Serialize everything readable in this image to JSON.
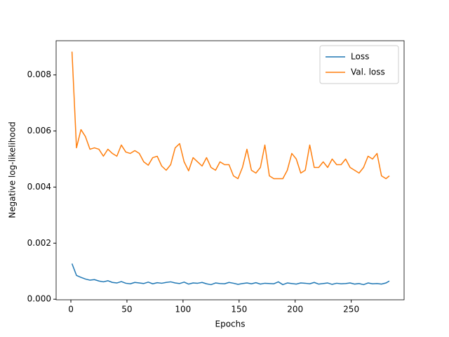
{
  "chart_data": {
    "type": "line",
    "xlabel": "Epochs",
    "ylabel": "Negative log-likelihood",
    "x": [
      1,
      5,
      9,
      13,
      17,
      21,
      25,
      29,
      33,
      37,
      41,
      45,
      49,
      53,
      57,
      61,
      65,
      69,
      73,
      77,
      81,
      85,
      89,
      93,
      97,
      101,
      105,
      109,
      113,
      117,
      121,
      125,
      129,
      133,
      137,
      141,
      145,
      149,
      153,
      157,
      161,
      165,
      169,
      173,
      177,
      181,
      185,
      189,
      193,
      197,
      201,
      205,
      209,
      213,
      217,
      221,
      225,
      229,
      233,
      237,
      241,
      245,
      249,
      253,
      257,
      261,
      265,
      269,
      273,
      277,
      281,
      284
    ],
    "series": [
      {
        "name": "Loss",
        "color": "#1f77b4",
        "values": [
          0.00127,
          0.00085,
          0.00078,
          0.00072,
          0.00068,
          0.0007,
          0.00065,
          0.00062,
          0.00066,
          0.0006,
          0.00058,
          0.00063,
          0.00057,
          0.00055,
          0.0006,
          0.00058,
          0.00056,
          0.00061,
          0.00055,
          0.00059,
          0.00057,
          0.0006,
          0.00062,
          0.00058,
          0.00056,
          0.00061,
          0.00054,
          0.00058,
          0.00057,
          0.0006,
          0.00055,
          0.00052,
          0.00058,
          0.00056,
          0.00055,
          0.0006,
          0.00057,
          0.00053,
          0.00056,
          0.00058,
          0.00055,
          0.00059,
          0.00054,
          0.00057,
          0.00056,
          0.00055,
          0.00062,
          0.00052,
          0.00058,
          0.00056,
          0.00054,
          0.00058,
          0.00057,
          0.00055,
          0.0006,
          0.00054,
          0.00056,
          0.00058,
          0.00053,
          0.00057,
          0.00055,
          0.00056,
          0.00058,
          0.00054,
          0.00056,
          0.00052,
          0.00058,
          0.00055,
          0.00056,
          0.00054,
          0.00058,
          0.00065
        ]
      },
      {
        "name": "Val. loss",
        "color": "#ff7f0e",
        "values": [
          0.00883,
          0.0054,
          0.00605,
          0.0058,
          0.00535,
          0.0054,
          0.00535,
          0.0051,
          0.00535,
          0.0052,
          0.0051,
          0.0055,
          0.00525,
          0.0052,
          0.0053,
          0.0052,
          0.0049,
          0.00478,
          0.00505,
          0.0051,
          0.00475,
          0.0046,
          0.0048,
          0.0054,
          0.00555,
          0.0049,
          0.00458,
          0.00505,
          0.0049,
          0.00475,
          0.00505,
          0.0047,
          0.0046,
          0.0049,
          0.0048,
          0.0048,
          0.0044,
          0.0043,
          0.0047,
          0.00535,
          0.0046,
          0.0045,
          0.0047,
          0.0055,
          0.0044,
          0.0043,
          0.0043,
          0.0043,
          0.0046,
          0.0052,
          0.005,
          0.0045,
          0.0046,
          0.0055,
          0.0047,
          0.0047,
          0.0049,
          0.0047,
          0.005,
          0.0048,
          0.0048,
          0.005,
          0.0047,
          0.0046,
          0.0045,
          0.0047,
          0.0051,
          0.005,
          0.0052,
          0.0044,
          0.0043,
          0.0044
        ]
      }
    ],
    "xlim": [
      -13.15,
      297.15
    ],
    "ylim": [
      -2e-05,
      0.00922
    ],
    "xticks": [
      0,
      50,
      100,
      150,
      200,
      250
    ],
    "yticks": [
      {
        "value": 0,
        "label": "0.000"
      },
      {
        "value": 0.002,
        "label": "0.002"
      },
      {
        "value": 0.004,
        "label": "0.004"
      },
      {
        "value": 0.006,
        "label": "0.006"
      },
      {
        "value": 0.008,
        "label": "0.008"
      }
    ],
    "legend": "upper right",
    "grid": false
  }
}
